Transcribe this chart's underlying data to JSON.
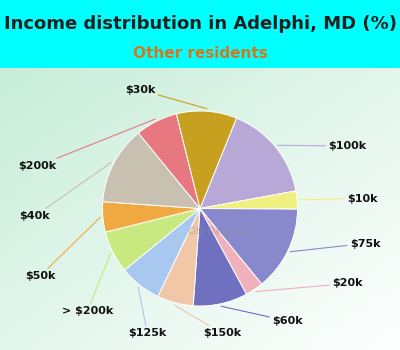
{
  "title": "Income distribution in Adelphi, MD (%)",
  "subtitle": "Other residents",
  "bg_color": "#00FFFF",
  "watermark": "City-Data.com",
  "labels": [
    "$100k",
    "$10k",
    "$75k",
    "$20k",
    "$60k",
    "$150k",
    "$125k",
    "> $200k",
    "$50k",
    "$40k",
    "$200k",
    "$30k"
  ],
  "values": [
    16,
    3,
    14,
    3,
    9,
    6,
    7,
    7,
    5,
    13,
    7,
    10
  ],
  "colors": [
    "#b8a8d8",
    "#f0f080",
    "#8888cc",
    "#f0b0bc",
    "#7070c0",
    "#f0c8a8",
    "#a8c8f0",
    "#c8e880",
    "#f0a840",
    "#c8c0b0",
    "#e87880",
    "#c8a020"
  ],
  "startangle": 68,
  "title_fontsize": 13,
  "subtitle_fontsize": 11,
  "label_fontsize": 8,
  "title_color": "#202020",
  "subtitle_color": "#d07820"
}
